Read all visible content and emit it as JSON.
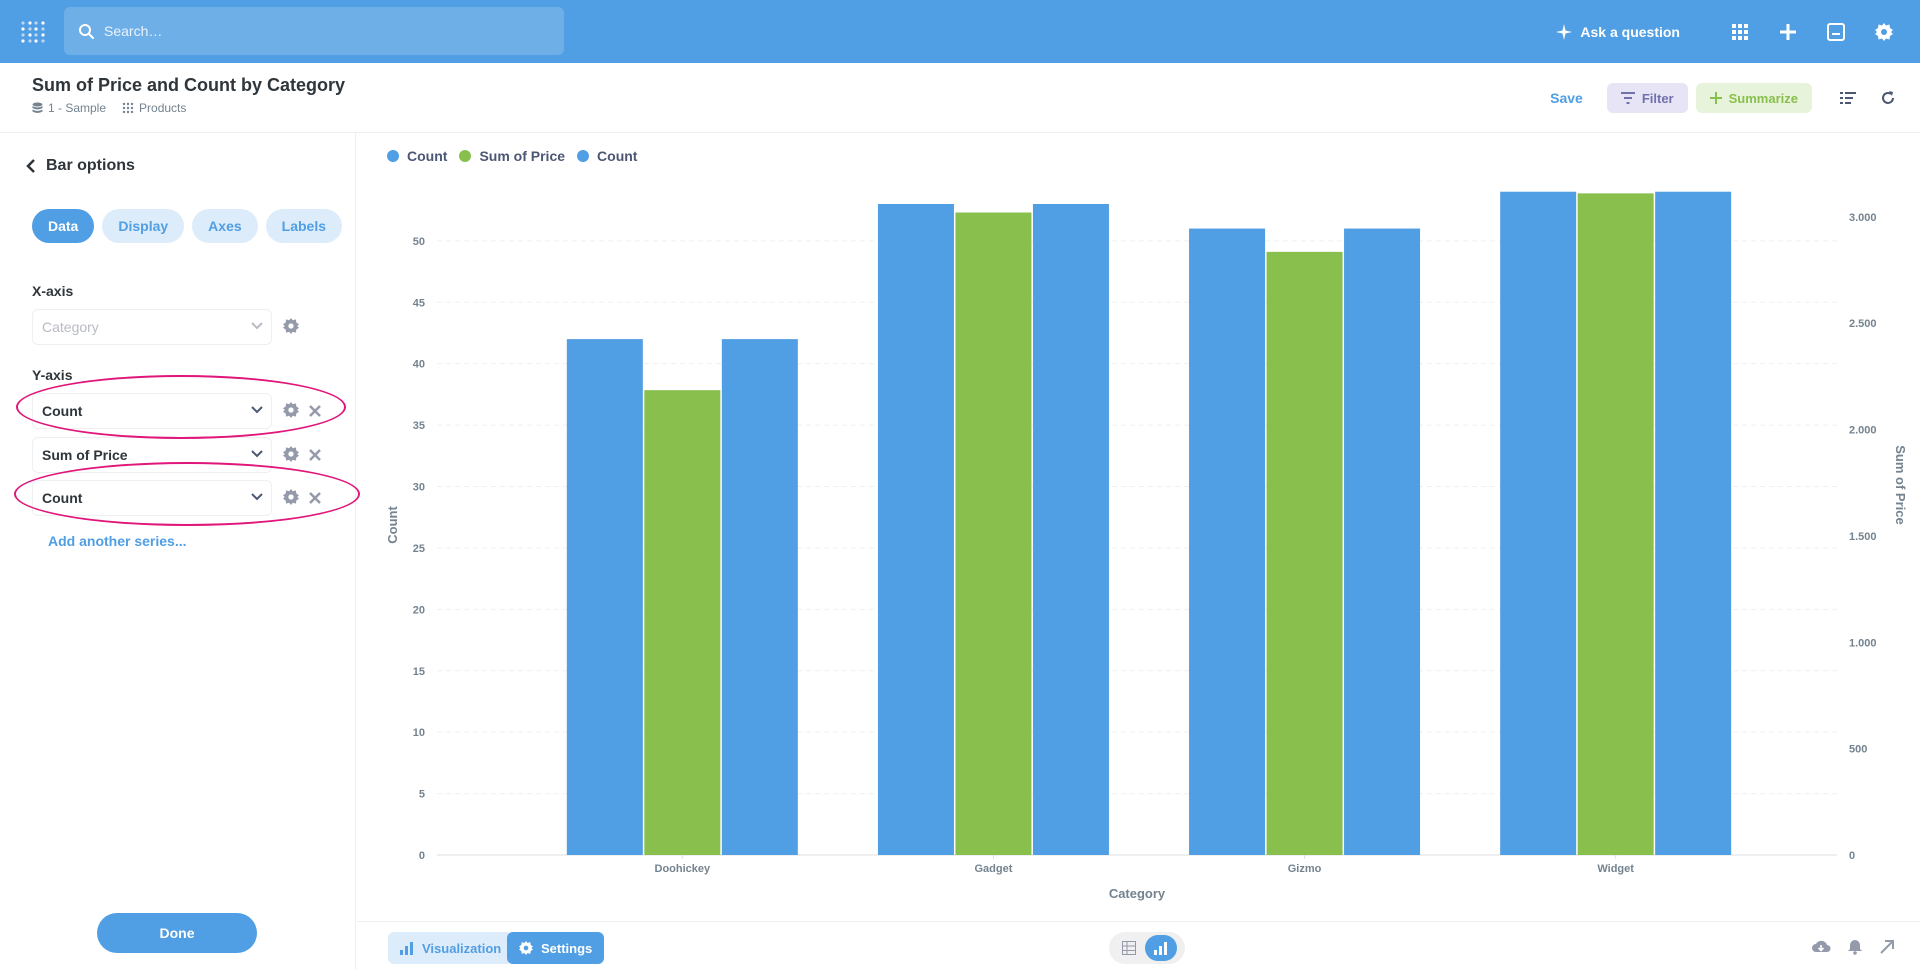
{
  "nav": {
    "search_placeholder": "Search…",
    "ask_label": "Ask a question"
  },
  "header": {
    "title": "Sum of Price and Count by Category",
    "breadcrumb": {
      "database": "1 - Sample",
      "table": "Products"
    },
    "save_label": "Save",
    "filter_label": "Filter",
    "summarize_label": "Summarize"
  },
  "sidebar": {
    "back_label": "Bar options",
    "tabs": [
      {
        "label": "Data",
        "active": true
      },
      {
        "label": "Display",
        "active": false
      },
      {
        "label": "Axes",
        "active": false
      },
      {
        "label": "Labels",
        "active": false
      }
    ],
    "x_axis_label": "X-axis",
    "x_axis_value": "Category",
    "y_axis_label": "Y-axis",
    "y_series": [
      "Count",
      "Sum of Price",
      "Count"
    ],
    "add_series_label": "Add another series...",
    "done_label": "Done"
  },
  "footer": {
    "visualization_label": "Visualization",
    "settings_label": "Settings"
  },
  "colors": {
    "blue": "#509ee3",
    "green": "#88bf4d",
    "highlight": "#e0167a"
  },
  "chart_data": {
    "type": "bar",
    "xlabel": "Category",
    "ylabel": "Count",
    "y2label": "Sum of Price",
    "categories": [
      "Doohickey",
      "Gadget",
      "Gizmo",
      "Widget"
    ],
    "series": [
      {
        "name": "Count",
        "axis": "left",
        "color": "#509ee3",
        "values": [
          42,
          53,
          51,
          54
        ]
      },
      {
        "name": "Sum of Price",
        "axis": "right",
        "color": "#88bf4d",
        "values": [
          2185,
          3020,
          2835,
          3110
        ]
      },
      {
        "name": "Count",
        "axis": "left",
        "color": "#509ee3",
        "values": [
          42,
          53,
          51,
          54
        ]
      }
    ],
    "ylim": [
      0,
      53
    ],
    "y_ticks": [
      0,
      5,
      10,
      15,
      20,
      25,
      30,
      35,
      40,
      45,
      50
    ],
    "y2lim": [
      0,
      3060
    ],
    "y2_ticks": [
      0,
      500,
      1000,
      1500,
      2000,
      2500,
      3000
    ],
    "y2_tick_labels": [
      "0",
      "500",
      "1.000",
      "1.500",
      "2.000",
      "2.500",
      "3.000"
    ],
    "grid": true,
    "legend_position": "top-left"
  }
}
